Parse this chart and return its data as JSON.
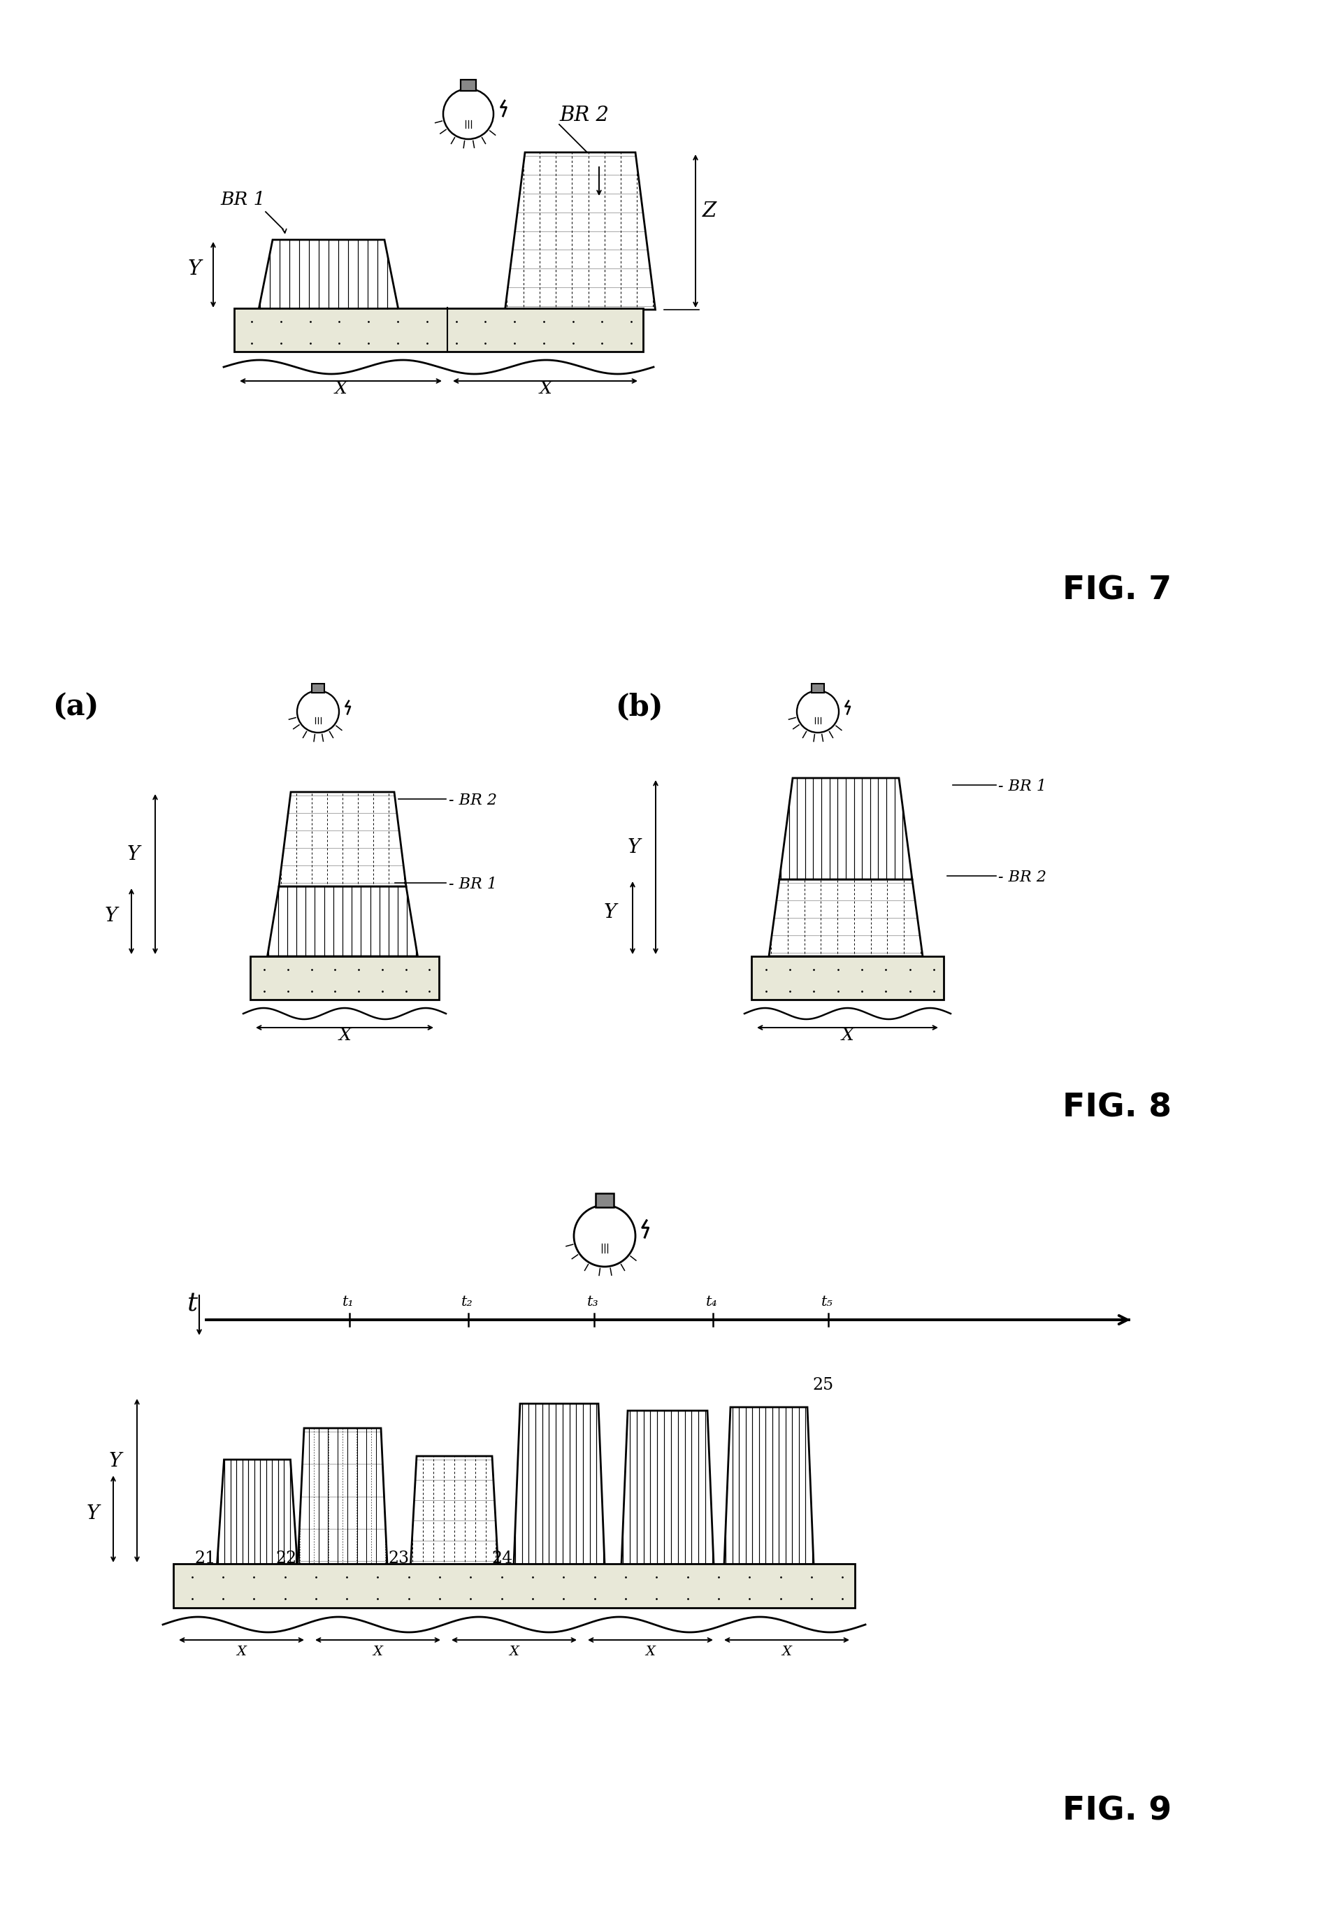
{
  "fig_width": 19.08,
  "fig_height": 27.28,
  "fig7_label": "FIG. 7",
  "fig8_label": "FIG. 8",
  "fig9_label": "FIG. 9",
  "label_a": "(a)",
  "label_b": "(b)"
}
